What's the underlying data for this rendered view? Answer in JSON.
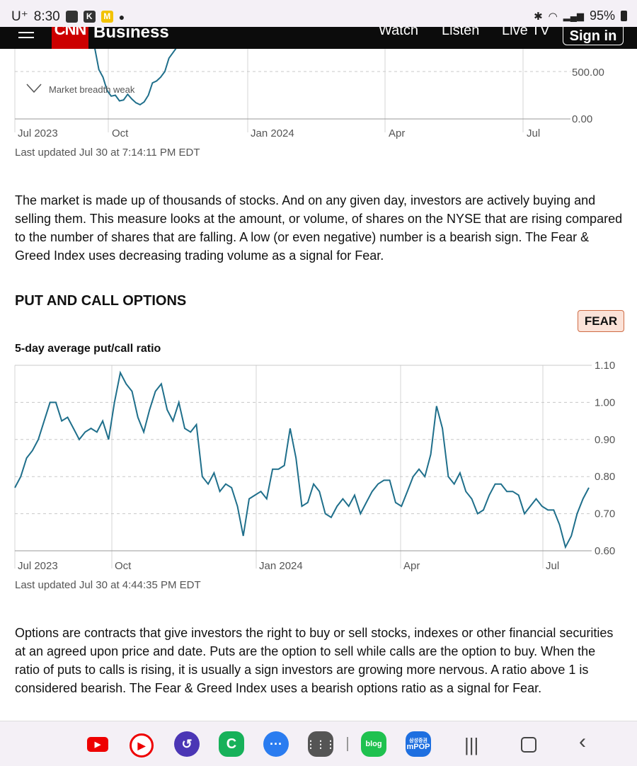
{
  "status_bar": {
    "carrier": "U⁺",
    "time": "8:30",
    "battery": "95%"
  },
  "header": {
    "logo_text": "CNN",
    "section": "Business",
    "nav": [
      "Watch",
      "Listen",
      "Live TV"
    ],
    "sign_in": "Sign in"
  },
  "breadth_chart": {
    "annotation": "Market breadth weak",
    "y_ticks": [
      "500.00",
      "0.00"
    ],
    "x_ticks": [
      "Jul 2023",
      "Oct",
      "Jan 2024",
      "Apr",
      "Jul"
    ],
    "updated": "Last updated Jul 30 at 7:14:11 PM EDT"
  },
  "breadth_text": "The market is made up of thousands of stocks. And on any given day, investors are actively buying and selling them. This measure looks at the amount, or volume, of shares on the NYSE that are rising compared to the number of shares that are falling. A low (or even negative) number is a bearish sign. The Fear & Greed Index uses decreasing trading volume as a signal for Fear.",
  "put_call": {
    "title": "PUT AND CALL OPTIONS",
    "badge": "FEAR",
    "chart_label": "5-day average put/call ratio",
    "updated": "Last updated Jul 30 at 4:44:35 PM EDT",
    "description": "Options are contracts that give investors the right to buy or sell stocks, indexes or other financial securities at an agreed upon price and date. Puts are the option to sell while calls are the option to buy. When the ratio of puts to calls is rising, it is usually a sign investors are growing more nervous. A ratio above 1 is considered bearish. The Fear & Greed Index uses a bearish options ratio as a signal for Fear."
  },
  "chart_data": [
    {
      "type": "line",
      "x_ticks": [
        "Jul 2023",
        "Oct",
        "Jan 2024",
        "Apr",
        "Jul"
      ],
      "y_ticks": [
        0,
        500
      ],
      "y_tick_labels": [
        "0.00",
        "500.00"
      ],
      "ylim": [
        0,
        1000
      ],
      "grid": true,
      "annotations": [
        "Market breadth weak"
      ],
      "series": [
        {
          "color": "#1f6f8b",
          "values": [
            1000,
            750,
            520,
            440,
            300,
            240,
            250,
            190,
            200,
            260,
            210,
            170,
            150,
            180,
            250,
            380,
            400,
            440,
            500,
            640,
            700,
            760,
            840,
            900
          ]
        }
      ]
    },
    {
      "type": "line",
      "x_ticks": [
        "Jul 2023",
        "Oct",
        "Jan 2024",
        "Apr",
        "Jul"
      ],
      "y_ticks": [
        0.6,
        0.7,
        0.8,
        0.9,
        1.0,
        1.1
      ],
      "y_tick_labels": [
        "0.60",
        "0.70",
        "0.80",
        "0.90",
        "1.00",
        "1.10"
      ],
      "ylim": [
        0.6,
        1.1
      ],
      "grid": true,
      "series": [
        {
          "color": "#1f6f8b",
          "values": [
            0.77,
            0.8,
            0.85,
            0.87,
            0.9,
            0.95,
            1.0,
            1.0,
            0.95,
            0.96,
            0.93,
            0.9,
            0.92,
            0.93,
            0.92,
            0.95,
            0.9,
            1.0,
            1.08,
            1.05,
            1.03,
            0.96,
            0.92,
            0.98,
            1.03,
            1.05,
            0.98,
            0.95,
            1.0,
            0.93,
            0.92,
            0.94,
            0.8,
            0.78,
            0.81,
            0.76,
            0.78,
            0.77,
            0.72,
            0.64,
            0.74,
            0.75,
            0.76,
            0.74,
            0.82,
            0.82,
            0.83,
            0.93,
            0.85,
            0.72,
            0.73,
            0.78,
            0.76,
            0.7,
            0.69,
            0.72,
            0.74,
            0.72,
            0.75,
            0.7,
            0.73,
            0.76,
            0.78,
            0.79,
            0.79,
            0.73,
            0.72,
            0.76,
            0.8,
            0.82,
            0.8,
            0.86,
            0.99,
            0.93,
            0.8,
            0.78,
            0.81,
            0.76,
            0.74,
            0.7,
            0.71,
            0.75,
            0.78,
            0.78,
            0.76,
            0.76,
            0.75,
            0.7,
            0.72,
            0.74,
            0.72,
            0.71,
            0.71,
            0.67,
            0.61,
            0.64,
            0.7,
            0.74,
            0.77
          ]
        }
      ]
    }
  ],
  "bottom_nav": {
    "blog_label": "blog",
    "mpop_top": "삼성증권",
    "mpop_label": "mPOP"
  }
}
